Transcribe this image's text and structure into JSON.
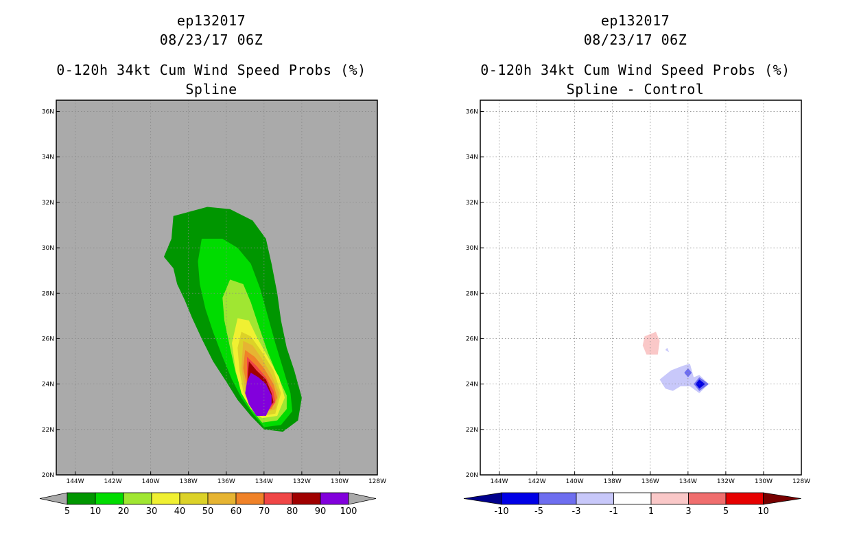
{
  "panels": [
    {
      "title_line1": "ep132017",
      "title_line2": "08/23/17 06Z",
      "title_line3": "0-120h 34kt Cum Wind Speed Probs (%)",
      "title_line4": "Spline"
    },
    {
      "title_line1": "ep132017",
      "title_line2": "08/23/17 06Z",
      "title_line3": "0-120h 34kt Cum Wind Speed Probs (%)",
      "title_line4": "Spline - Control"
    }
  ],
  "chart_data": [
    {
      "type": "contour-map",
      "title": "0-120h 34kt Cum Wind Speed Probs (%) Spline",
      "background_color": "#aaaaaa",
      "xlim_lon": [
        -145,
        -128
      ],
      "ylim_lat": [
        20,
        36.5
      ],
      "x_ticks": [
        "144W",
        "142W",
        "140W",
        "138W",
        "136W",
        "134W",
        "132W",
        "130W",
        "128W"
      ],
      "y_ticks": [
        "20N",
        "22N",
        "24N",
        "26N",
        "28N",
        "30N",
        "32N",
        "34N",
        "36N"
      ],
      "grid": true,
      "colorbar": {
        "levels": [
          "5",
          "10",
          "20",
          "30",
          "40",
          "50",
          "60",
          "70",
          "80",
          "90",
          "100"
        ],
        "colors": [
          "#009600",
          "#00dc00",
          "#a0e632",
          "#f0f032",
          "#dcd228",
          "#e6b432",
          "#f08228",
          "#f04646",
          "#a00000",
          "#8200dc"
        ],
        "under_color": "#aaaaaa",
        "over_color": "#aaaaaa"
      },
      "contours": [
        {
          "level": 5,
          "color": "#009600",
          "points": [
            [
              -138.8,
              31.4
            ],
            [
              -137,
              31.8
            ],
            [
              -135.8,
              31.7
            ],
            [
              -134.6,
              31.2
            ],
            [
              -133.9,
              30.4
            ],
            [
              -133.6,
              29.3
            ],
            [
              -133.3,
              28
            ],
            [
              -133.1,
              26.8
            ],
            [
              -132.8,
              25.6
            ],
            [
              -132.4,
              24.6
            ],
            [
              -132,
              23.4
            ],
            [
              -132.2,
              22.4
            ],
            [
              -133,
              21.9
            ],
            [
              -134,
              22
            ],
            [
              -134.7,
              22.6
            ],
            [
              -135.4,
              23.3
            ],
            [
              -136,
              24.1
            ],
            [
              -136.7,
              25
            ],
            [
              -137.3,
              26
            ],
            [
              -137.8,
              26.9
            ],
            [
              -138.2,
              27.7
            ],
            [
              -138.6,
              28.4
            ],
            [
              -138.8,
              29.1
            ],
            [
              -139.3,
              29.6
            ],
            [
              -138.9,
              30.4
            ]
          ]
        },
        {
          "level": 10,
          "color": "#00dc00",
          "points": [
            [
              -137.3,
              30.4
            ],
            [
              -136.2,
              30.4
            ],
            [
              -135.4,
              30
            ],
            [
              -134.7,
              29.3
            ],
            [
              -134.2,
              28.2
            ],
            [
              -133.8,
              27
            ],
            [
              -133.4,
              25.8
            ],
            [
              -133,
              24.7
            ],
            [
              -132.6,
              23.6
            ],
            [
              -132.5,
              22.8
            ],
            [
              -133.1,
              22.2
            ],
            [
              -134,
              22.1
            ],
            [
              -134.6,
              22.7
            ],
            [
              -135.2,
              23.4
            ],
            [
              -135.7,
              24.2
            ],
            [
              -136.2,
              25.2
            ],
            [
              -136.7,
              26.3
            ],
            [
              -137.1,
              27.3
            ],
            [
              -137.4,
              28.4
            ],
            [
              -137.5,
              29.4
            ]
          ]
        },
        {
          "level": 20,
          "color": "#a0e632",
          "points": [
            [
              -135.8,
              28.6
            ],
            [
              -135.1,
              28.4
            ],
            [
              -134.7,
              27.6
            ],
            [
              -134.3,
              26.6
            ],
            [
              -133.8,
              25.4
            ],
            [
              -133.3,
              24.4
            ],
            [
              -132.8,
              23.5
            ],
            [
              -132.8,
              22.9
            ],
            [
              -133.3,
              22.4
            ],
            [
              -134.1,
              22.3
            ],
            [
              -134.6,
              22.8
            ],
            [
              -135.1,
              23.5
            ],
            [
              -135.5,
              24.5
            ],
            [
              -135.8,
              25.6
            ],
            [
              -136.1,
              26.8
            ],
            [
              -136.2,
              27.8
            ]
          ]
        },
        {
          "level": 30,
          "color": "#f0f032",
          "points": [
            [
              -135.4,
              26.9
            ],
            [
              -134.8,
              26.8
            ],
            [
              -134.4,
              26.1
            ],
            [
              -133.8,
              25.2
            ],
            [
              -133.2,
              24.3
            ],
            [
              -132.9,
              23.4
            ],
            [
              -133.3,
              22.6
            ],
            [
              -134.1,
              22.5
            ],
            [
              -134.7,
              22.9
            ],
            [
              -135.2,
              23.6
            ],
            [
              -135.5,
              24.6
            ],
            [
              -135.7,
              25.8
            ]
          ]
        },
        {
          "level": 40,
          "color": "#dcd228",
          "points": [
            [
              -135.2,
              26.3
            ],
            [
              -134.7,
              26.1
            ],
            [
              -134.1,
              25.4
            ],
            [
              -133.5,
              24.6
            ],
            [
              -133.1,
              23.6
            ],
            [
              -133.4,
              22.7
            ],
            [
              -134.1,
              22.6
            ],
            [
              -134.7,
              23
            ],
            [
              -135.1,
              23.7
            ],
            [
              -135.3,
              24.6
            ],
            [
              -135.4,
              25.6
            ]
          ]
        },
        {
          "level": 50,
          "color": "#e6b432",
          "points": [
            [
              -135.1,
              25.9
            ],
            [
              -134.6,
              25.7
            ],
            [
              -134.1,
              25.1
            ],
            [
              -133.6,
              24.4
            ],
            [
              -133.2,
              23.6
            ],
            [
              -133.4,
              22.9
            ],
            [
              -134.1,
              22.7
            ],
            [
              -134.7,
              23.1
            ],
            [
              -135,
              23.8
            ],
            [
              -135.2,
              24.7
            ]
          ]
        },
        {
          "level": 60,
          "color": "#f08228",
          "points": [
            [
              -135,
              25.5
            ],
            [
              -134.5,
              25.2
            ],
            [
              -134,
              24.7
            ],
            [
              -133.5,
              24
            ],
            [
              -133.3,
              23.4
            ],
            [
              -133.6,
              22.9
            ],
            [
              -134.2,
              22.8
            ],
            [
              -134.7,
              23.2
            ],
            [
              -134.9,
              23.9
            ],
            [
              -135.1,
              24.7
            ]
          ]
        },
        {
          "level": 70,
          "color": "#f04646",
          "points": [
            [
              -134.9,
              25.2
            ],
            [
              -134.4,
              24.8
            ],
            [
              -133.9,
              24.3
            ],
            [
              -133.5,
              23.7
            ],
            [
              -133.4,
              23.2
            ],
            [
              -133.7,
              22.9
            ],
            [
              -134.3,
              22.9
            ],
            [
              -134.8,
              23.2
            ],
            [
              -134.9,
              23.9
            ]
          ]
        },
        {
          "level": 80,
          "color": "#a00000",
          "points": [
            [
              -134.8,
              25
            ],
            [
              -134.4,
              24.6
            ],
            [
              -133.9,
              24.2
            ],
            [
              -133.6,
              23.6
            ],
            [
              -133.5,
              23.2
            ],
            [
              -133.8,
              22.9
            ],
            [
              -134.4,
              22.9
            ],
            [
              -134.8,
              23.2
            ],
            [
              -134.9,
              23.9
            ]
          ]
        },
        {
          "level": 90,
          "color": "#8200dc",
          "points": [
            [
              -134.7,
              24.5
            ],
            [
              -134.3,
              24.3
            ],
            [
              -133.9,
              24
            ],
            [
              -133.6,
              23.5
            ],
            [
              -133.6,
              23.1
            ],
            [
              -133.9,
              22.6
            ],
            [
              -134.4,
              22.6
            ],
            [
              -134.8,
              23.1
            ],
            [
              -135,
              23.6
            ],
            [
              -134.9,
              24.1
            ]
          ]
        }
      ]
    },
    {
      "type": "contour-map",
      "title": "0-120h 34kt Cum Wind Speed Probs (%) Spline - Control",
      "background_color": "#ffffff",
      "xlim_lon": [
        -145,
        -128
      ],
      "ylim_lat": [
        20,
        36.5
      ],
      "x_ticks": [
        "144W",
        "142W",
        "140W",
        "138W",
        "136W",
        "134W",
        "132W",
        "130W",
        "128W"
      ],
      "y_ticks": [
        "20N",
        "22N",
        "24N",
        "26N",
        "28N",
        "30N",
        "32N",
        "34N",
        "36N"
      ],
      "grid": true,
      "colorbar": {
        "levels": [
          "-10",
          "-5",
          "-3",
          "-1",
          "1",
          "3",
          "5",
          "10"
        ],
        "colors": [
          "#0000e6",
          "#6e6ef0",
          "#c8c8fa",
          "#ffffff",
          "#fac8c8",
          "#f06e6e",
          "#e60000"
        ],
        "under_color": "#00008c",
        "over_color": "#780000"
      },
      "contours": [
        {
          "level": 1,
          "color": "#fac8c8",
          "points": [
            [
              -136.3,
              26.1
            ],
            [
              -135.7,
              26.3
            ],
            [
              -135.5,
              25.9
            ],
            [
              -135.6,
              25.3
            ],
            [
              -136.2,
              25.3
            ],
            [
              -136.4,
              25.7
            ]
          ]
        },
        {
          "level": -1,
          "color": "#c8c8fa",
          "points": [
            [
              -135.2,
              25.5
            ],
            [
              -135.1,
              25.6
            ],
            [
              -135,
              25.4
            ]
          ]
        },
        {
          "level": -1,
          "color": "#c8c8fa",
          "points": [
            [
              -135.5,
              24.2
            ],
            [
              -134.9,
              24.6
            ],
            [
              -134.3,
              24.8
            ],
            [
              -133.9,
              24.9
            ],
            [
              -133.7,
              24.3
            ],
            [
              -133.4,
              24.4
            ],
            [
              -132.9,
              24
            ],
            [
              -133.4,
              23.6
            ],
            [
              -133.9,
              23.9
            ],
            [
              -134.4,
              23.9
            ],
            [
              -134.8,
              23.7
            ],
            [
              -135.2,
              23.8
            ]
          ]
        },
        {
          "level": -3,
          "color": "#6e6ef0",
          "points": [
            [
              -134,
              24.7
            ],
            [
              -133.8,
              24.5
            ],
            [
              -134,
              24.3
            ],
            [
              -134.2,
              24.5
            ]
          ]
        },
        {
          "level": -3,
          "color": "#6e6ef0",
          "points": [
            [
              -133.4,
              24.3
            ],
            [
              -132.9,
              24
            ],
            [
              -133.4,
              23.7
            ],
            [
              -133.7,
              24
            ]
          ]
        },
        {
          "level": -5,
          "color": "#0000e6",
          "points": [
            [
              -133.4,
              24.2
            ],
            [
              -133.1,
              24
            ],
            [
              -133.4,
              23.8
            ],
            [
              -133.6,
              24
            ]
          ]
        }
      ]
    }
  ]
}
